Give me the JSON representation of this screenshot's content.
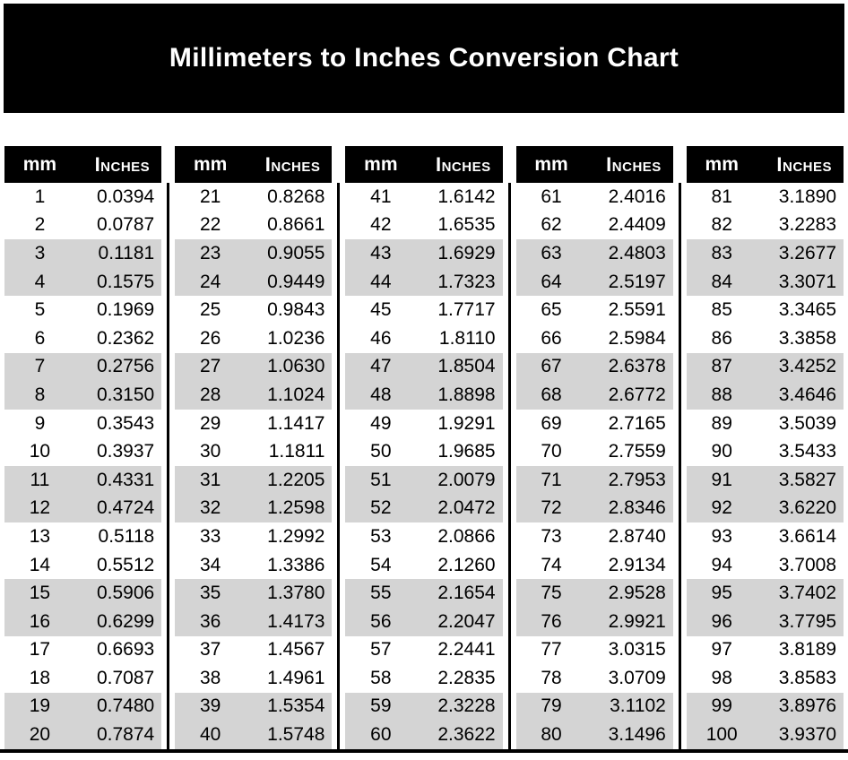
{
  "title": "Millimeters to Inches Conversion Chart",
  "colors": {
    "title_bg": "#000000",
    "header_bg": "#000000",
    "header_text": "#ffffff",
    "stripe": "#d4d4d4",
    "body_text": "#000000"
  },
  "table": {
    "header": {
      "mm": "mm",
      "inches": "Inches"
    },
    "columns": [
      {
        "rows": [
          [
            "1",
            "0.0394"
          ],
          [
            "2",
            "0.0787"
          ],
          [
            "3",
            "0.1181"
          ],
          [
            "4",
            "0.1575"
          ],
          [
            "5",
            "0.1969"
          ],
          [
            "6",
            "0.2362"
          ],
          [
            "7",
            "0.2756"
          ],
          [
            "8",
            "0.3150"
          ],
          [
            "9",
            "0.3543"
          ],
          [
            "10",
            "0.3937"
          ],
          [
            "11",
            "0.4331"
          ],
          [
            "12",
            "0.4724"
          ],
          [
            "13",
            "0.5118"
          ],
          [
            "14",
            "0.5512"
          ],
          [
            "15",
            "0.5906"
          ],
          [
            "16",
            "0.6299"
          ],
          [
            "17",
            "0.6693"
          ],
          [
            "18",
            "0.7087"
          ],
          [
            "19",
            "0.7480"
          ],
          [
            "20",
            "0.7874"
          ]
        ]
      },
      {
        "rows": [
          [
            "21",
            "0.8268"
          ],
          [
            "22",
            "0.8661"
          ],
          [
            "23",
            "0.9055"
          ],
          [
            "24",
            "0.9449"
          ],
          [
            "25",
            "0.9843"
          ],
          [
            "26",
            "1.0236"
          ],
          [
            "27",
            "1.0630"
          ],
          [
            "28",
            "1.1024"
          ],
          [
            "29",
            "1.1417"
          ],
          [
            "30",
            "1.1811"
          ],
          [
            "31",
            "1.2205"
          ],
          [
            "32",
            "1.2598"
          ],
          [
            "33",
            "1.2992"
          ],
          [
            "34",
            "1.3386"
          ],
          [
            "35",
            "1.3780"
          ],
          [
            "36",
            "1.4173"
          ],
          [
            "37",
            "1.4567"
          ],
          [
            "38",
            "1.4961"
          ],
          [
            "39",
            "1.5354"
          ],
          [
            "40",
            "1.5748"
          ]
        ]
      },
      {
        "rows": [
          [
            "41",
            "1.6142"
          ],
          [
            "42",
            "1.6535"
          ],
          [
            "43",
            "1.6929"
          ],
          [
            "44",
            "1.7323"
          ],
          [
            "45",
            "1.7717"
          ],
          [
            "46",
            "1.8110"
          ],
          [
            "47",
            "1.8504"
          ],
          [
            "48",
            "1.8898"
          ],
          [
            "49",
            "1.9291"
          ],
          [
            "50",
            "1.9685"
          ],
          [
            "51",
            "2.0079"
          ],
          [
            "52",
            "2.0472"
          ],
          [
            "53",
            "2.0866"
          ],
          [
            "54",
            "2.1260"
          ],
          [
            "55",
            "2.1654"
          ],
          [
            "56",
            "2.2047"
          ],
          [
            "57",
            "2.2441"
          ],
          [
            "58",
            "2.2835"
          ],
          [
            "59",
            "2.3228"
          ],
          [
            "60",
            "2.3622"
          ]
        ]
      },
      {
        "rows": [
          [
            "61",
            "2.4016"
          ],
          [
            "62",
            "2.4409"
          ],
          [
            "63",
            "2.4803"
          ],
          [
            "64",
            "2.5197"
          ],
          [
            "65",
            "2.5591"
          ],
          [
            "66",
            "2.5984"
          ],
          [
            "67",
            "2.6378"
          ],
          [
            "68",
            "2.6772"
          ],
          [
            "69",
            "2.7165"
          ],
          [
            "70",
            "2.7559"
          ],
          [
            "71",
            "2.7953"
          ],
          [
            "72",
            "2.8346"
          ],
          [
            "73",
            "2.8740"
          ],
          [
            "74",
            "2.9134"
          ],
          [
            "75",
            "2.9528"
          ],
          [
            "76",
            "2.9921"
          ],
          [
            "77",
            "3.0315"
          ],
          [
            "78",
            "3.0709"
          ],
          [
            "79",
            "3.1102"
          ],
          [
            "80",
            "3.1496"
          ]
        ]
      },
      {
        "rows": [
          [
            "81",
            "3.1890"
          ],
          [
            "82",
            "3.2283"
          ],
          [
            "83",
            "3.2677"
          ],
          [
            "84",
            "3.3071"
          ],
          [
            "85",
            "3.3465"
          ],
          [
            "86",
            "3.3858"
          ],
          [
            "87",
            "3.4252"
          ],
          [
            "88",
            "3.4646"
          ],
          [
            "89",
            "3.5039"
          ],
          [
            "90",
            "3.5433"
          ],
          [
            "91",
            "3.5827"
          ],
          [
            "92",
            "3.6220"
          ],
          [
            "93",
            "3.6614"
          ],
          [
            "94",
            "3.7008"
          ],
          [
            "95",
            "3.7402"
          ],
          [
            "96",
            "3.7795"
          ],
          [
            "97",
            "3.8189"
          ],
          [
            "98",
            "3.8583"
          ],
          [
            "99",
            "3.8976"
          ],
          [
            "100",
            "3.9370"
          ]
        ]
      }
    ]
  }
}
